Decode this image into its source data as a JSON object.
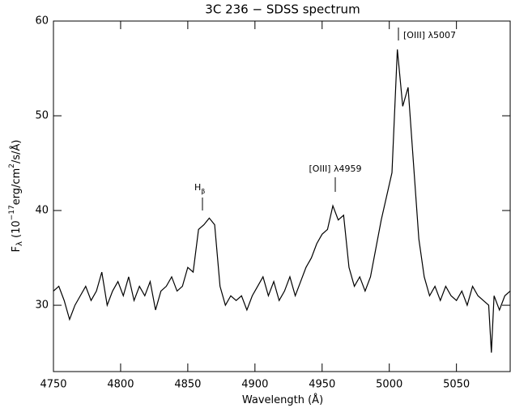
{
  "chart_data": {
    "type": "line",
    "title": "3C 236 − SDSS spectrum",
    "xlabel": [
      "Wavelength (",
      "Å",
      ")"
    ],
    "ylabel": [
      "F",
      "λ",
      " (10",
      "−17",
      "erg/cm",
      "2",
      "/s/",
      "Å",
      ")"
    ],
    "annotations": {
      "hbeta": [
        "H",
        "β"
      ],
      "oiii4959": "[OIII] λ4959",
      "oiii5007": "[OIII] λ5007"
    },
    "x": [
      4750,
      4754,
      4758,
      4762,
      4766,
      4770,
      4774,
      4778,
      4782,
      4786,
      4790,
      4794,
      4798,
      4802,
      4806,
      4810,
      4814,
      4818,
      4822,
      4826,
      4830,
      4834,
      4838,
      4842,
      4846,
      4850,
      4854,
      4858,
      4862,
      4866,
      4870,
      4874,
      4878,
      4882,
      4886,
      4890,
      4894,
      4898,
      4902,
      4906,
      4910,
      4914,
      4918,
      4922,
      4926,
      4930,
      4934,
      4938,
      4942,
      4946,
      4950,
      4954,
      4958,
      4962,
      4966,
      4970,
      4974,
      4978,
      4982,
      4986,
      4990,
      4994,
      4998,
      5002,
      5006,
      5010,
      5014,
      5018,
      5022,
      5026,
      5030,
      5034,
      5038,
      5042,
      5046,
      5050,
      5054,
      5058,
      5062,
      5066,
      5070,
      5074,
      5076,
      5078,
      5082,
      5086,
      5090
    ],
    "series": [
      {
        "color": "#000000",
        "values": [
          31.5,
          32,
          30.5,
          28.5,
          30,
          31,
          32,
          30.5,
          31.5,
          33.5,
          30,
          31.5,
          32.5,
          31,
          33,
          30.5,
          32,
          31,
          32.5,
          29.5,
          31.5,
          32,
          33,
          31.5,
          32,
          34,
          33.5,
          38,
          38.5,
          39.2,
          38.5,
          32,
          30,
          31,
          30.5,
          31,
          29.5,
          31,
          32,
          33,
          31,
          32.5,
          30.5,
          31.5,
          33,
          31,
          32.5,
          34,
          35,
          36.5,
          37.5,
          38,
          40.5,
          39,
          39.5,
          34,
          32,
          33,
          31.5,
          33,
          36,
          39,
          41.5,
          44,
          57,
          51,
          53,
          45,
          37,
          33,
          31,
          32,
          30.5,
          32,
          31,
          30.5,
          31.5,
          30,
          32,
          31,
          30.5,
          30,
          25,
          31,
          29.5,
          31,
          31.5
        ]
      }
    ],
    "xlim": [
      4750,
      5090
    ],
    "ylim": [
      23,
      60
    ],
    "xticks": [
      4750,
      4800,
      4850,
      4900,
      4950,
      5000,
      5050
    ],
    "yticks": [
      30,
      40,
      50,
      60
    ]
  }
}
